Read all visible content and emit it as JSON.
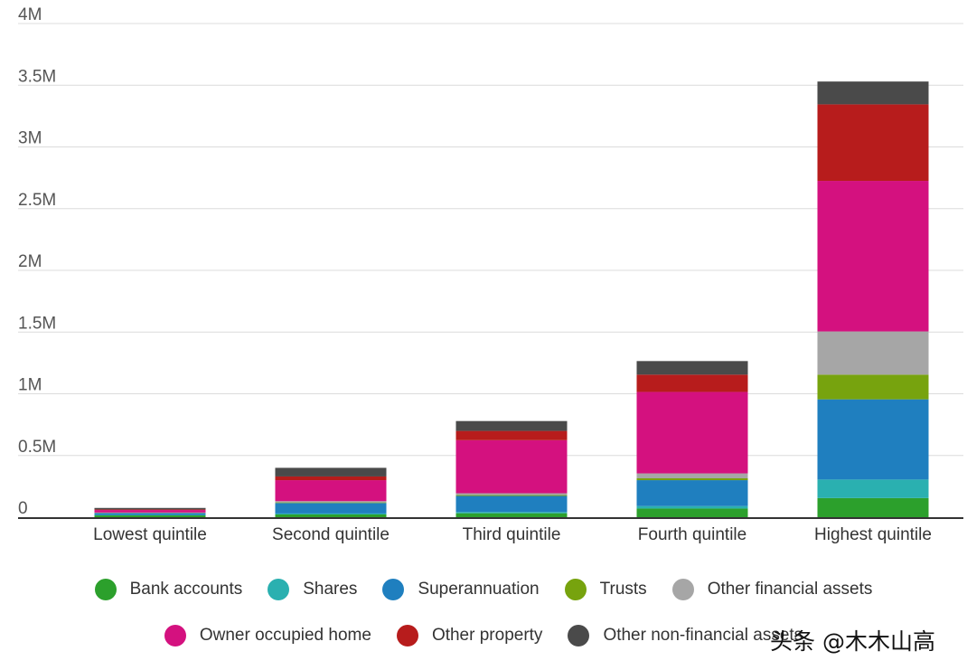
{
  "chart_data": {
    "type": "bar",
    "stacked": true,
    "categories": [
      "Lowest quintile",
      "Second quintile",
      "Third quintile",
      "Fourth quintile",
      "Highest quintile"
    ],
    "series": [
      {
        "name": "Bank accounts",
        "color": "#2ca02c",
        "values": [
          15000,
          22000,
          32000,
          70000,
          155000
        ]
      },
      {
        "name": "Shares",
        "color": "#2ab0b0",
        "values": [
          3000,
          8000,
          10000,
          20000,
          150000
        ]
      },
      {
        "name": "Superannuation",
        "color": "#1f7fbf",
        "values": [
          15000,
          85000,
          130000,
          210000,
          650000
        ]
      },
      {
        "name": "Trusts",
        "color": "#77a30e",
        "values": [
          2000,
          5000,
          7000,
          15000,
          200000
        ]
      },
      {
        "name": "Other financial assets",
        "color": "#a6a6a6",
        "values": [
          3000,
          10000,
          15000,
          40000,
          350000
        ]
      },
      {
        "name": "Owner occupied home",
        "color": "#d4117f",
        "values": [
          20000,
          170000,
          430000,
          660000,
          1220000
        ]
      },
      {
        "name": "Other property",
        "color": "#b71c1c",
        "values": [
          5000,
          30000,
          75000,
          140000,
          620000
        ]
      },
      {
        "name": "Other non-financial assets",
        "color": "#4a4a4a",
        "values": [
          12000,
          70000,
          80000,
          110000,
          185000
        ]
      }
    ],
    "y_ticks": [
      "0",
      "0.5M",
      "1M",
      "1.5M",
      "2M",
      "2.5M",
      "3M",
      "3.5M",
      "4M"
    ],
    "ylim": [
      0,
      4000000
    ],
    "grid": true,
    "legend_position": "bottom"
  },
  "watermark": "头条 @木木山高"
}
